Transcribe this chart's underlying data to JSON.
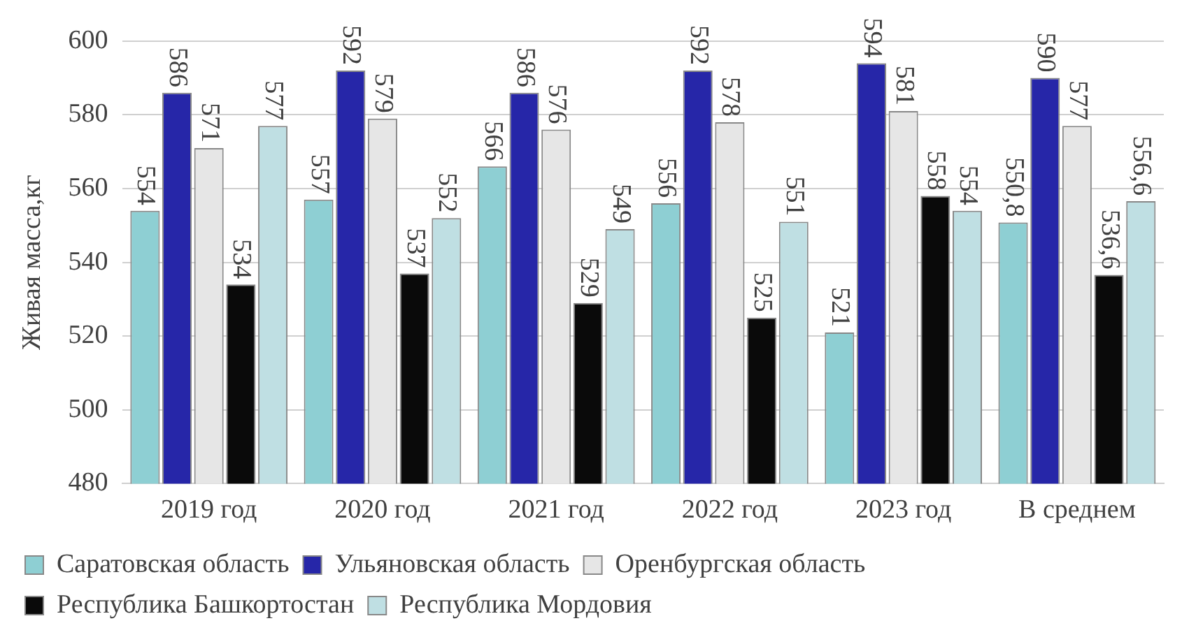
{
  "chart_data": {
    "type": "bar",
    "ylabel": "Живая масса,кг",
    "categories": [
      "2019 год",
      "2020 год",
      "2021 год",
      "2022 год",
      "2023 год",
      "В среднем"
    ],
    "series": [
      {
        "name": "Саратовская область",
        "color": "#8ecfd3",
        "values": [
          554,
          557,
          566,
          556,
          521,
          550.8
        ],
        "value_labels": [
          "554",
          "557",
          "566",
          "556",
          "521",
          "550,8"
        ]
      },
      {
        "name": "Ульяновская область",
        "color": "#2626a8",
        "values": [
          586,
          592,
          586,
          592,
          594,
          590
        ],
        "value_labels": [
          "586",
          "592",
          "586",
          "592",
          "594",
          "590"
        ]
      },
      {
        "name": "Оренбургская область",
        "color": "#e6e6e6",
        "values": [
          571,
          579,
          576,
          578,
          581,
          577
        ],
        "value_labels": [
          "571",
          "579",
          "576",
          "578",
          "581",
          "577"
        ]
      },
      {
        "name": "Республика Башкортостан",
        "color": "#0a0a0a",
        "values": [
          534,
          537,
          529,
          525,
          558,
          536.6
        ],
        "value_labels": [
          "534",
          "537",
          "529",
          "525",
          "558",
          "536,6"
        ]
      },
      {
        "name": "Республика Мордовия",
        "color": "#bfdfe3",
        "values": [
          577,
          552,
          549,
          551,
          554,
          556.6
        ],
        "value_labels": [
          "577",
          "552",
          "549",
          "551",
          "554",
          "556,6"
        ]
      }
    ],
    "ylim": [
      480,
      600
    ],
    "yticks": [
      480,
      500,
      520,
      540,
      560,
      580,
      600
    ],
    "grid": "y",
    "legend": "bottom"
  }
}
